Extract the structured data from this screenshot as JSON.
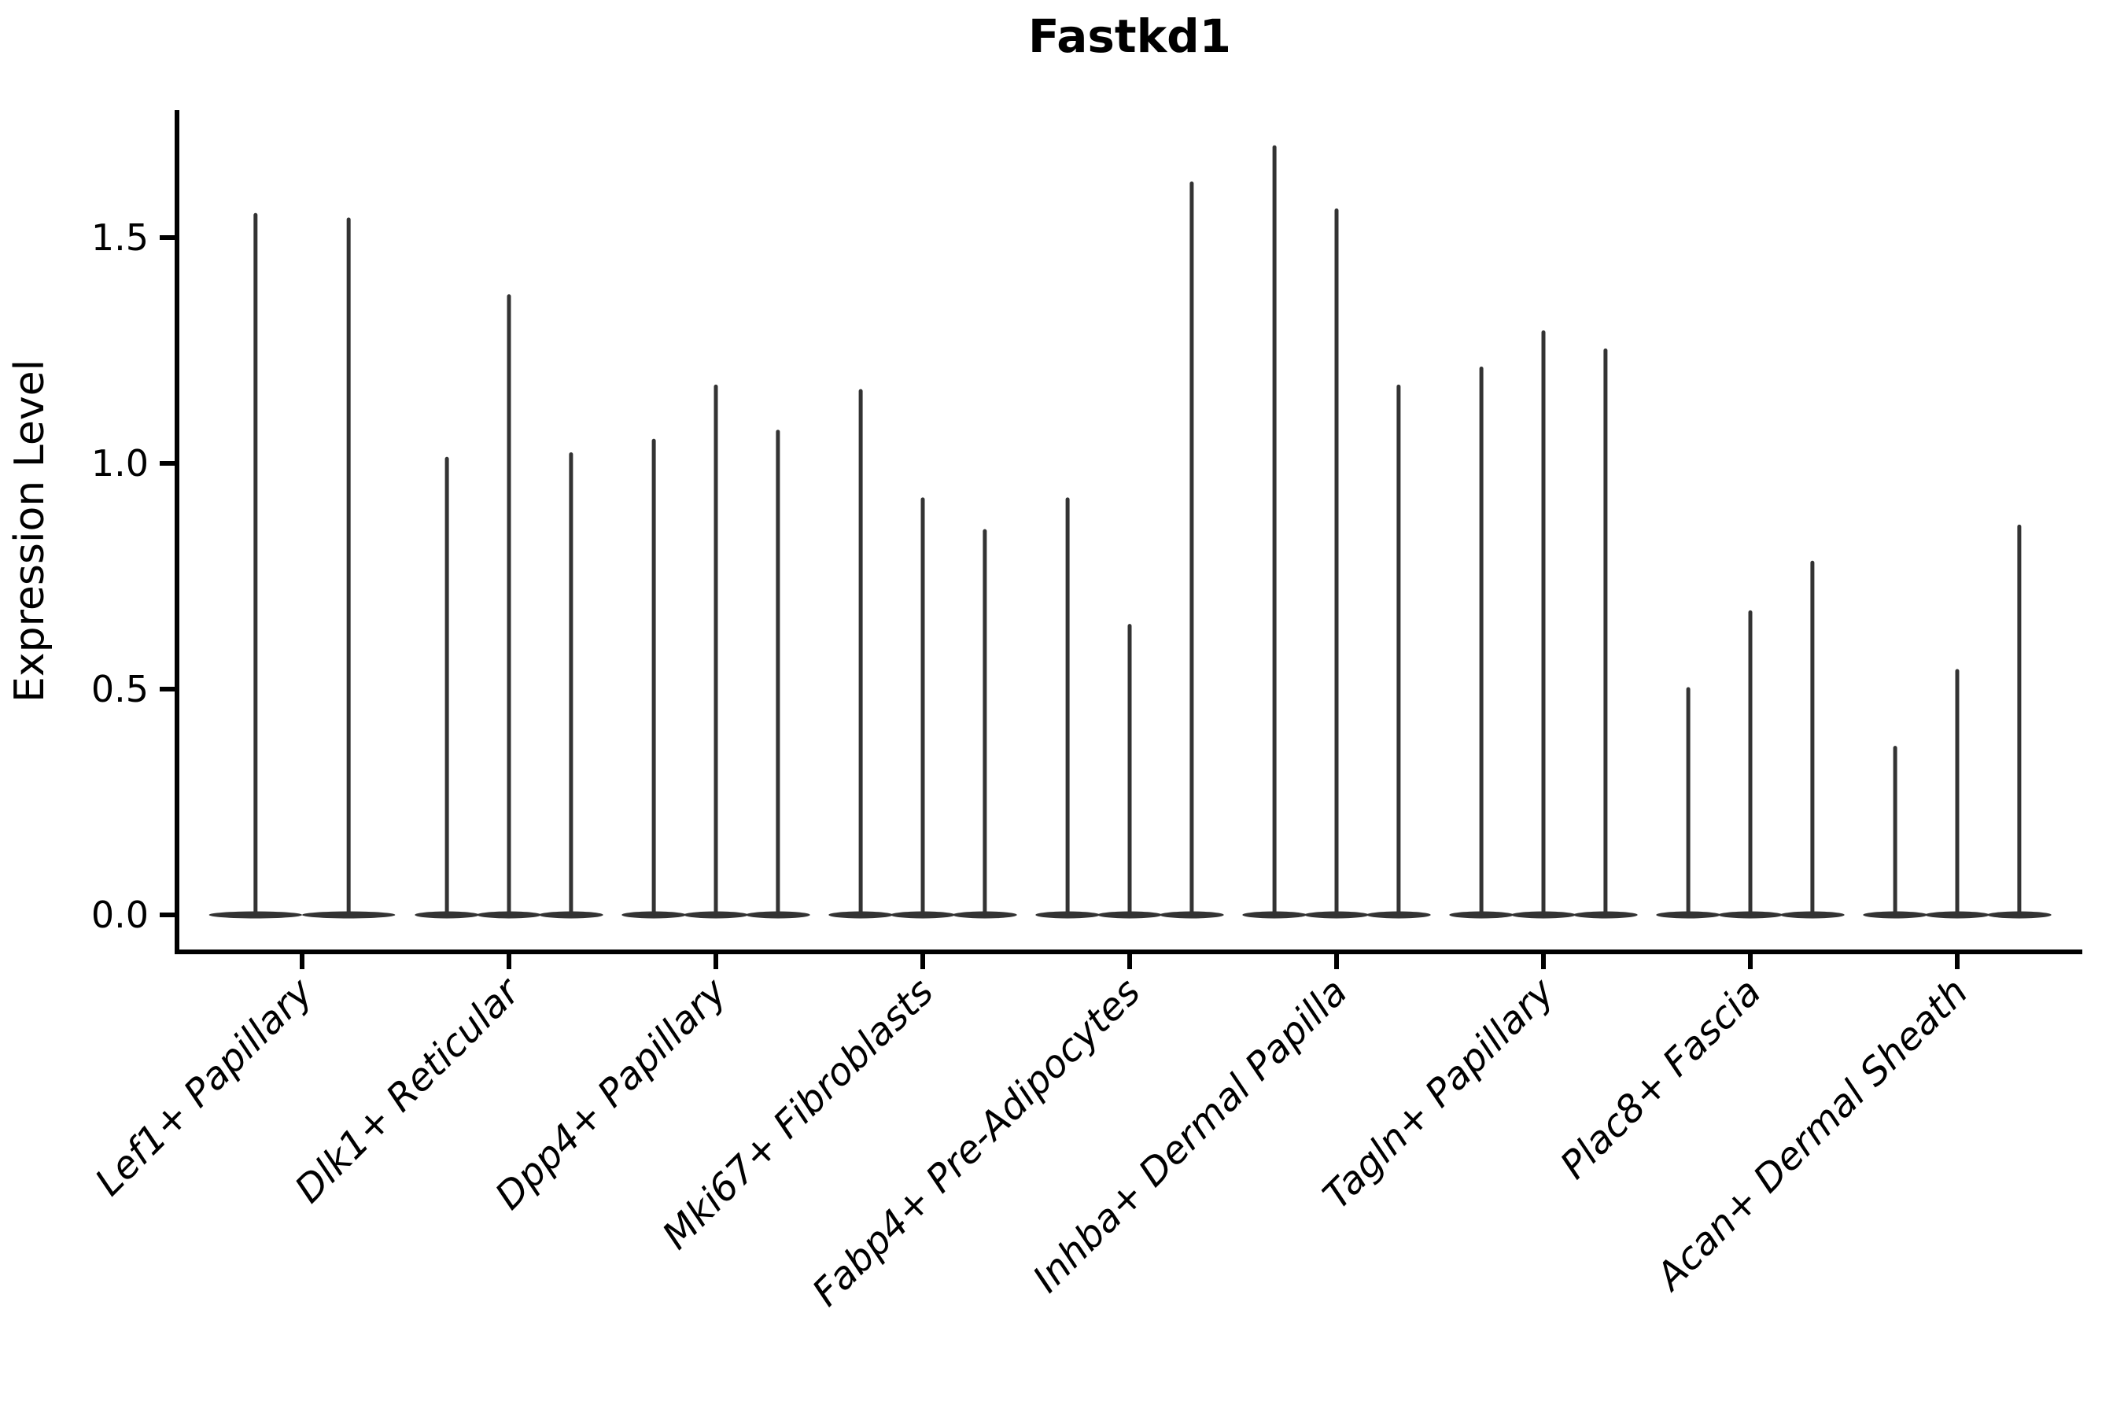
{
  "page": {
    "background": "#ffffff"
  },
  "chart_data": {
    "type": "violin",
    "title": "Fastkd1",
    "xlabel": "",
    "ylabel": "Expression Level",
    "y_tick_labels": [
      "0.0",
      "0.5",
      "1.0",
      "1.5"
    ],
    "y_tick_values": [
      0.0,
      0.5,
      1.0,
      1.5
    ],
    "ylim": [
      -0.085,
      1.785
    ],
    "grid": false,
    "legend": "none",
    "categories": [
      "Lef1+ Papillary",
      "Dlk1+ Reticular",
      "Dpp4+ Papillary",
      "Mki67+ Fibroblasts",
      "Fabp4+ Pre-Adipocytes",
      "Inhba+ Dermal Papilla",
      "Tagln+ Papillary",
      "Plac8+ Fascia",
      "Acan+ Dermal Sheath"
    ],
    "violin_maxima": [
      [
        1.55,
        1.54
      ],
      [
        1.01,
        1.37,
        1.02
      ],
      [
        1.05,
        1.17,
        1.07
      ],
      [
        1.16,
        0.92,
        0.85
      ],
      [
        0.92,
        0.64,
        1.62
      ],
      [
        1.7,
        1.56,
        1.17
      ],
      [
        1.21,
        1.29,
        1.25
      ],
      [
        0.5,
        0.67,
        0.78
      ],
      [
        0.37,
        0.54,
        0.86
      ]
    ],
    "violin_shape_note": "each violin collapses to a wide flat disk at 0 with a hair-thin spike up to its maximum",
    "violin_color": "#333333",
    "axis_color": "#000000"
  }
}
